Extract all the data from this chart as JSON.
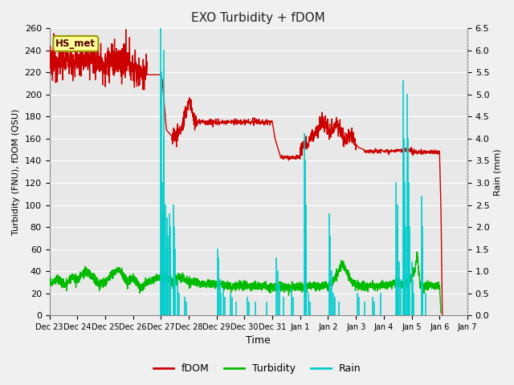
{
  "title": "EXO Turbidity + fDOM",
  "xlabel": "Time",
  "ylabel_left": "Turbidity (FNU), fDOM (QSU)",
  "ylabel_right": "Rain (mm)",
  "ylim_left": [
    0,
    260
  ],
  "ylim_right": [
    0,
    6.5
  ],
  "yticks_left": [
    0,
    20,
    40,
    60,
    80,
    100,
    120,
    140,
    160,
    180,
    200,
    220,
    240,
    260
  ],
  "yticks_right": [
    0.0,
    0.5,
    1.0,
    1.5,
    2.0,
    2.5,
    3.0,
    3.5,
    4.0,
    4.5,
    5.0,
    5.5,
    6.0,
    6.5
  ],
  "xlim": [
    0,
    15
  ],
  "xtick_labels": [
    "Dec 23",
    "Dec 24",
    "Dec 25",
    "Dec 26",
    "Dec 27",
    "Dec 28",
    "Dec 29",
    "Dec 30",
    "Dec 31",
    "Jan 1",
    "Jan 2",
    "Jan 3",
    "Jan 4",
    "Jan 5",
    "Jan 6",
    "Jan 7"
  ],
  "xtick_positions": [
    0,
    1,
    2,
    3,
    4,
    5,
    6,
    7,
    8,
    9,
    10,
    11,
    12,
    13,
    14,
    15
  ],
  "fdom_color": "#cc0000",
  "turbidity_color": "#00bb00",
  "rain_color": "#00cccc",
  "annotation_text": "HS_met",
  "annotation_box_facecolor": "#ffff99",
  "annotation_box_edgecolor": "#999900",
  "plot_bg_color": "#e8e8e8",
  "fig_bg_color": "#f0f0f0",
  "grid_color": "#ffffff",
  "legend_labels": [
    "fDOM",
    "Turbidity",
    "Rain"
  ],
  "legend_colors": [
    "#cc0000",
    "#00bb00",
    "#00cccc"
  ]
}
